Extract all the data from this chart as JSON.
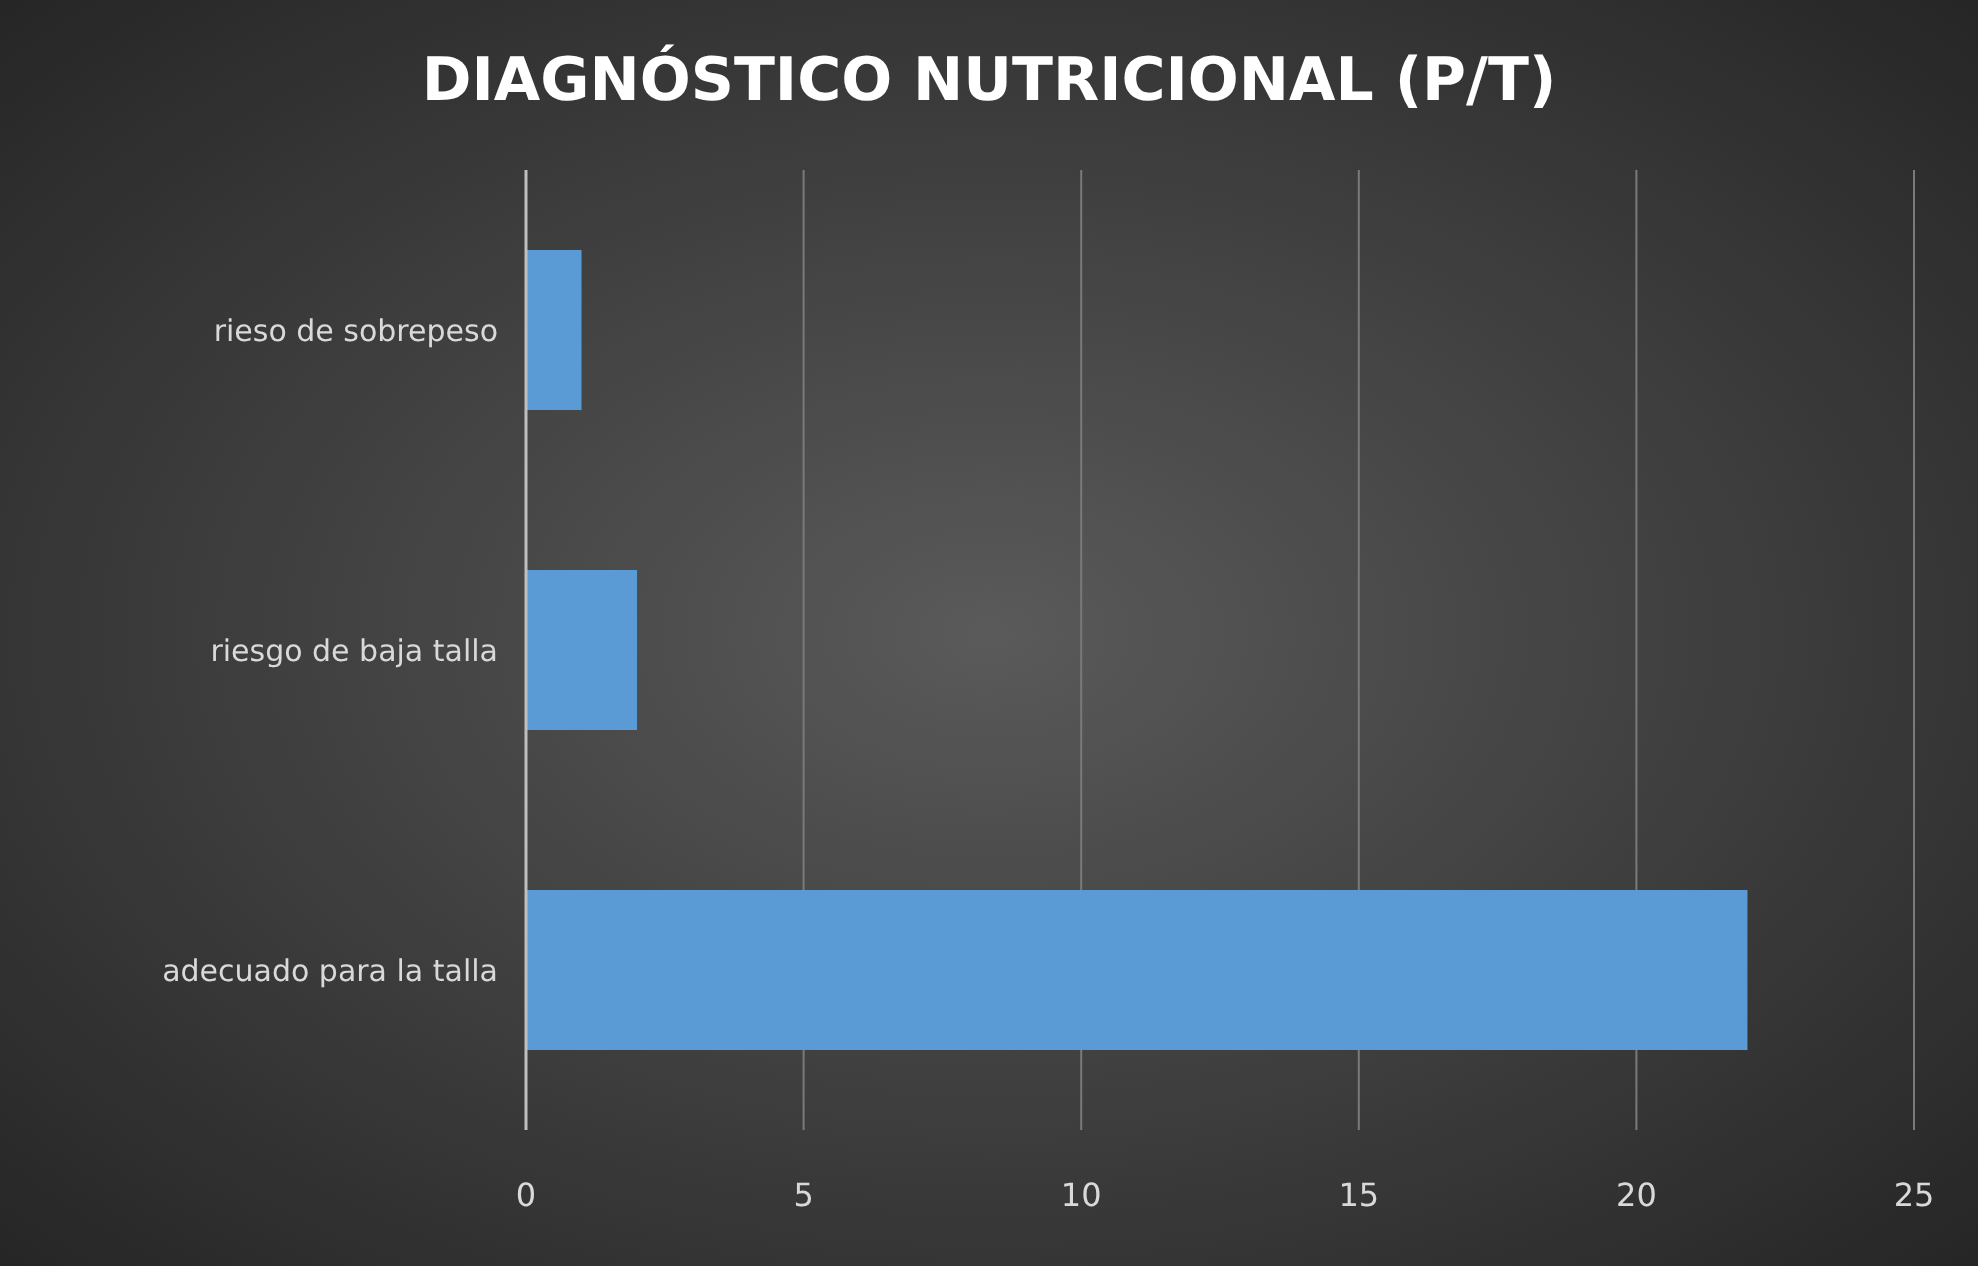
{
  "chart_data": {
    "type": "bar",
    "orientation": "horizontal",
    "title": "DIAGNÓSTICO NUTRICIONAL (P/T)",
    "categories": [
      "rieso de sobrepeso",
      "riesgo de baja talla",
      "adecuado para la talla"
    ],
    "values": [
      1,
      2,
      22
    ],
    "color": "#5b9bd5",
    "xlim": [
      0,
      25
    ],
    "xticks": [
      0,
      5,
      10,
      15,
      20,
      25
    ],
    "grid": "x"
  }
}
